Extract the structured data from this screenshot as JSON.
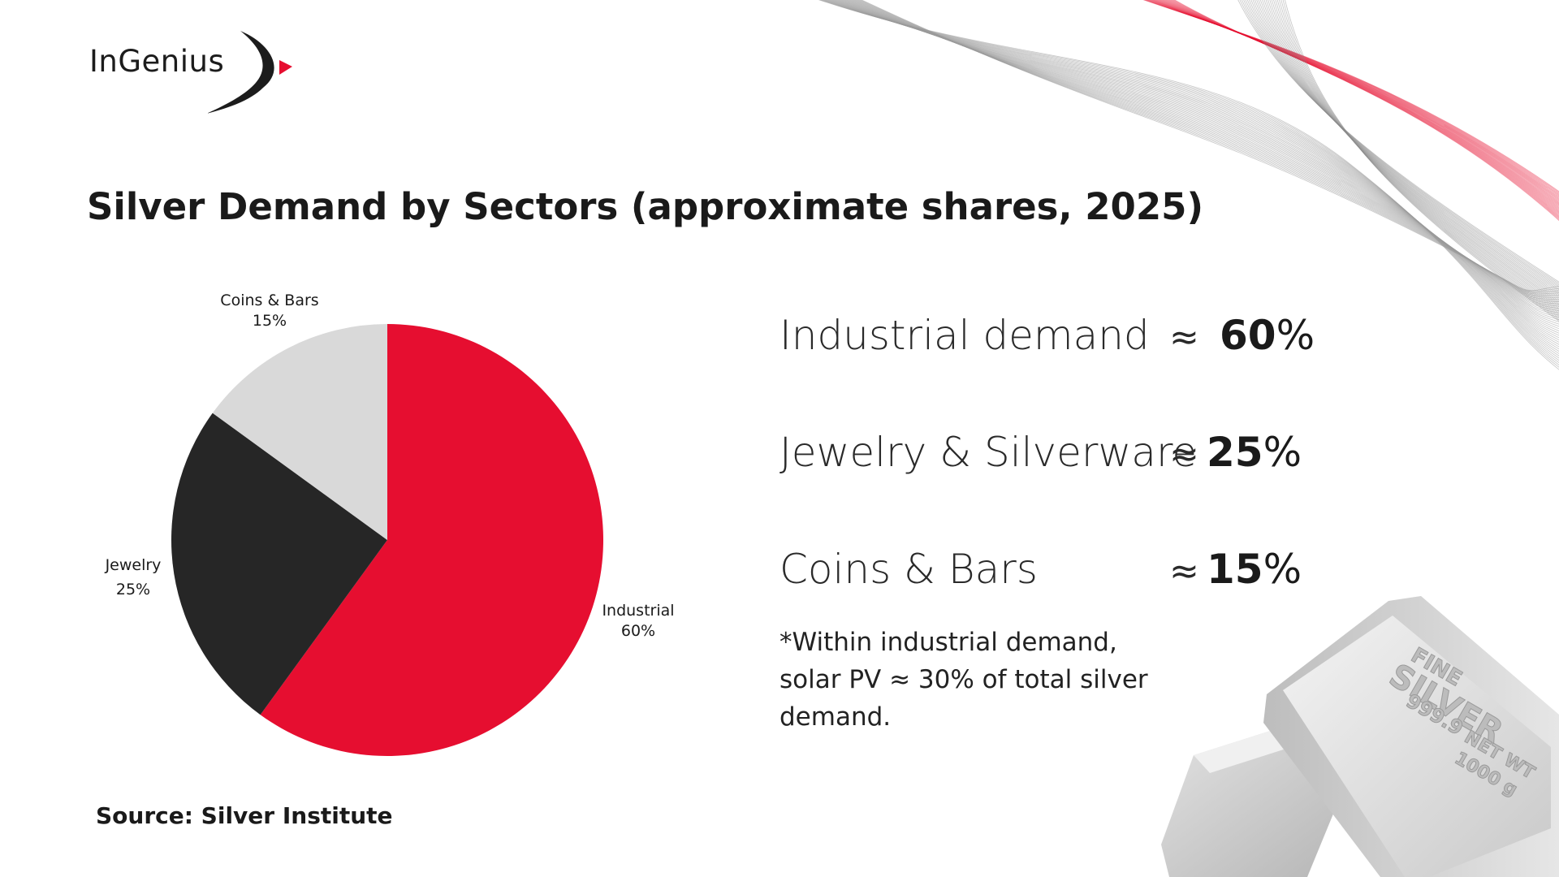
{
  "brand": {
    "name": "InGenius",
    "accent": "#e60e30",
    "dark": "#1c1c1c"
  },
  "title": "Silver Demand by Sectors (approximate shares, 2025)",
  "chart_data": {
    "type": "pie",
    "title": "Silver Demand by Sectors (approximate shares, 2025)",
    "slices": [
      {
        "name": "Industrial",
        "value": 60,
        "label": "60%",
        "color": "#e60e30"
      },
      {
        "name": "Jewelry",
        "value": 25,
        "label": "25%",
        "color": "#262626"
      },
      {
        "name": "Coins & Bars",
        "value": 15,
        "label": "15%",
        "color": "#d9d9d9"
      }
    ],
    "start": "12 o'clock",
    "direction": "clockwise"
  },
  "stats": [
    {
      "label": "Industrial demand",
      "approx": "≈",
      "value": "60",
      "unit": "%"
    },
    {
      "label": "Jewelry & Silverware",
      "approx": "≈",
      "value": "25",
      "unit": "%"
    },
    {
      "label": "Coins & Bars",
      "approx": "≈",
      "value": "15",
      "unit": "%"
    }
  ],
  "note": "*Within industrial demand, solar PV ≈ 30% of total silver demand.",
  "source": "Source: Silver Institute",
  "bar_image": {
    "line1": "FINE",
    "line2": "SILVER",
    "line3": "999.9",
    "line4": "NET WT",
    "line5": "1000 g"
  }
}
